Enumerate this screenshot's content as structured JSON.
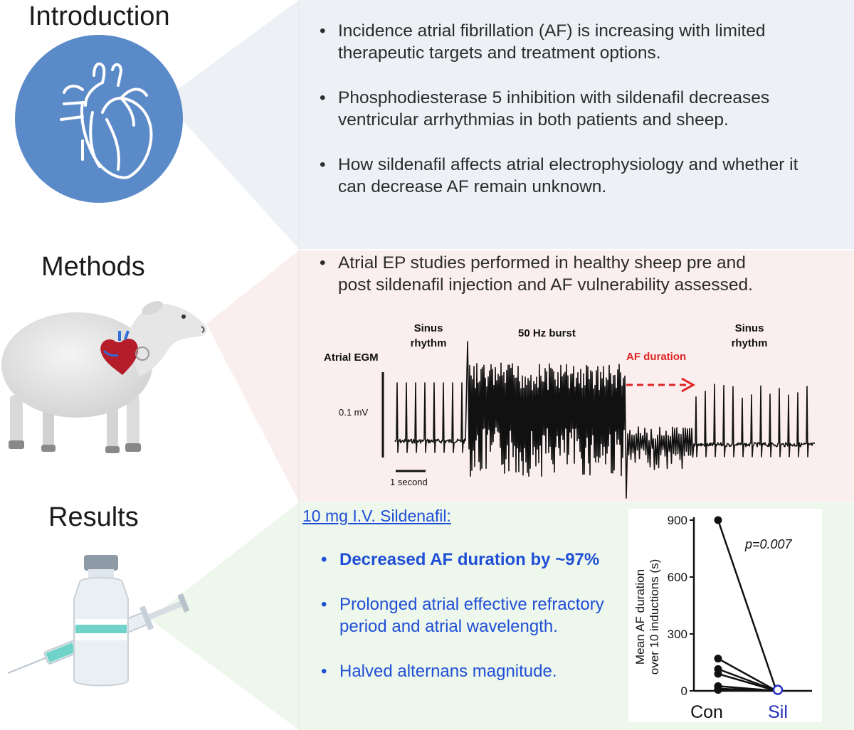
{
  "sections": {
    "introduction": {
      "title": "Introduction",
      "bullets": [
        "Incidence  atrial fibrillation (AF) is increasing with limited therapeutic targets and treatment options.",
        "Phosphodiesterase 5 inhibition with sildenafil decreases ventricular arrhythmias in both patients and sheep.",
        "How sildenafil affects atrial electrophysiology and whether it can decrease AF remain unknown."
      ]
    },
    "methods": {
      "title": "Methods",
      "bullets": [
        "Atrial EP studies performed in healthy sheep pre and post sildenafil injection and AF vulnerability assessed."
      ],
      "egm": {
        "trace_label": "Atrial EGM",
        "sinus_label_left": "Sinus rhythm",
        "burst_label": "50 Hz burst",
        "af_label": "AF duration",
        "sinus_label_right": "Sinus rhythm",
        "amplitude_label": "0.1 mV",
        "time_scale_label": "1 second"
      }
    },
    "results": {
      "title": "Results",
      "heading": "10 mg I.V. Sildenafil:",
      "bullets": [
        "Decreased AF duration by ~97%",
        "Prolonged atrial effective refractory period and atrial wavelength.",
        "Halved alternans magnitude."
      ]
    }
  },
  "colors": {
    "intro_panel": "#edf1f6",
    "methods_panel": "#fbeeee",
    "results_panel": "#eef7ec",
    "heart_circle": "#5b8ac9",
    "results_text": "#1f4fd6",
    "af_arrow": "#e02424",
    "sil_marker": "#2230c0"
  },
  "icons": {
    "introduction": "heart-icon",
    "methods": "sheep-icon",
    "results": "vial-syringe-icon"
  },
  "chart_data": {
    "type": "scatter",
    "ylabel": "Mean AF duration over 10 inductions (s)",
    "xlabel": "",
    "categories": [
      "Con",
      "Sil"
    ],
    "yticks": [
      0,
      300,
      600,
      900
    ],
    "ylim": [
      0,
      900
    ],
    "annotation": "p=0.007",
    "pairs": [
      {
        "con": 900,
        "sil": 0
      },
      {
        "con": 170,
        "sil": 0
      },
      {
        "con": 115,
        "sil": 0
      },
      {
        "con": 90,
        "sil": 0
      },
      {
        "con": 25,
        "sil": 0
      },
      {
        "con": 12,
        "sil": 0
      },
      {
        "con": 5,
        "sil": 0
      }
    ],
    "sil_mean": 5
  }
}
